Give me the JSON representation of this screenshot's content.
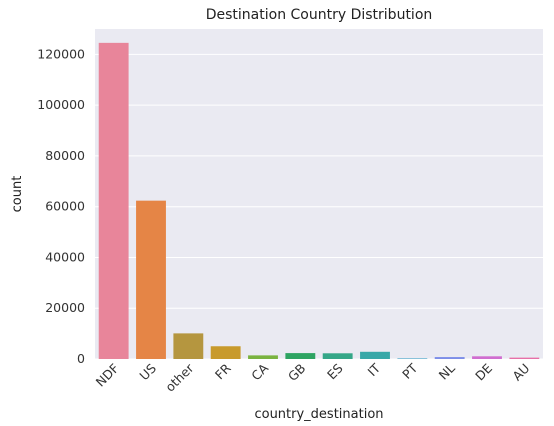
{
  "chart_data": {
    "type": "bar",
    "title": "Destination Country Distribution",
    "xlabel": "country_destination",
    "ylabel": "count",
    "categories": [
      "NDF",
      "US",
      "other",
      "FR",
      "CA",
      "GB",
      "ES",
      "IT",
      "PT",
      "NL",
      "DE",
      "AU"
    ],
    "values": [
      124543,
      62376,
      10094,
      5023,
      1428,
      2324,
      2249,
      2835,
      217,
      762,
      1061,
      539
    ],
    "colors": [
      "#e8859a",
      "#e58546",
      "#b5963f",
      "#c89a2c",
      "#7ab340",
      "#2ea462",
      "#35a788",
      "#37a8a8",
      "#3aa1c6",
      "#7d8ee8",
      "#d06ed0",
      "#e770a8"
    ],
    "ylim": [
      0,
      130000
    ],
    "yticks": [
      0,
      20000,
      40000,
      60000,
      80000,
      100000,
      120000
    ],
    "ytick_labels": [
      "0",
      "20000",
      "40000",
      "60000",
      "80000",
      "100000",
      "120000"
    ],
    "grid": true,
    "background": "#eaeaf2"
  }
}
